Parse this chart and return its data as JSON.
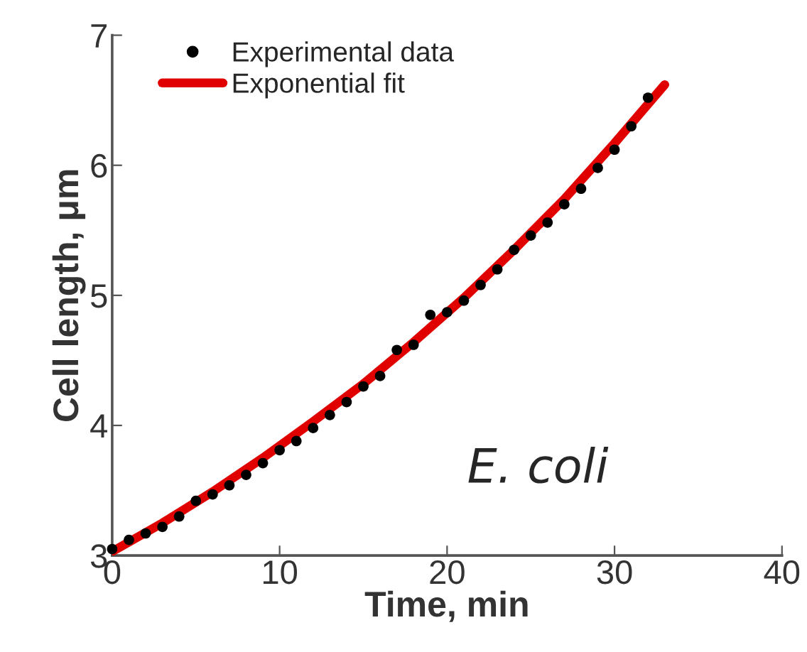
{
  "chart_data": {
    "type": "scatter",
    "xlabel": "Time, min",
    "ylabel": "Cell length, μm",
    "annotations": [
      "E. coli"
    ],
    "xlim": [
      0,
      40
    ],
    "xticks": [
      0,
      10,
      20,
      30,
      40
    ],
    "ylim": [
      3,
      7
    ],
    "yticks": [
      3,
      4,
      5,
      6,
      7
    ],
    "grid": false,
    "legend": "top left",
    "series": [
      {
        "name": "Experimental data",
        "color": "#000000",
        "marker": "circle",
        "x": [
          0,
          1,
          2,
          3,
          4,
          5,
          6,
          7,
          8,
          9,
          10,
          11,
          12,
          13,
          14,
          15,
          16,
          17,
          18,
          19,
          20,
          21,
          22,
          23,
          24,
          25,
          26,
          27,
          28,
          29,
          30,
          31,
          32
        ],
        "values": [
          3.05,
          3.12,
          3.17,
          3.22,
          3.3,
          3.42,
          3.47,
          3.54,
          3.62,
          3.71,
          3.81,
          3.88,
          3.98,
          4.08,
          4.18,
          4.3,
          4.38,
          4.58,
          4.62,
          4.85,
          4.87,
          4.96,
          5.08,
          5.2,
          5.35,
          5.46,
          5.56,
          5.7,
          5.82,
          5.98,
          6.12,
          6.3,
          6.52
        ]
      },
      {
        "name": "Exponential fit",
        "type": "line",
        "color": "#e00000",
        "line_style": "solid",
        "x": [
          0,
          3,
          6,
          9,
          12,
          15,
          18,
          21,
          24,
          27,
          30,
          33
        ],
        "values": [
          3.03,
          3.25,
          3.49,
          3.75,
          4.03,
          4.32,
          4.64,
          4.98,
          5.35,
          5.74,
          6.17,
          6.62
        ]
      }
    ]
  }
}
